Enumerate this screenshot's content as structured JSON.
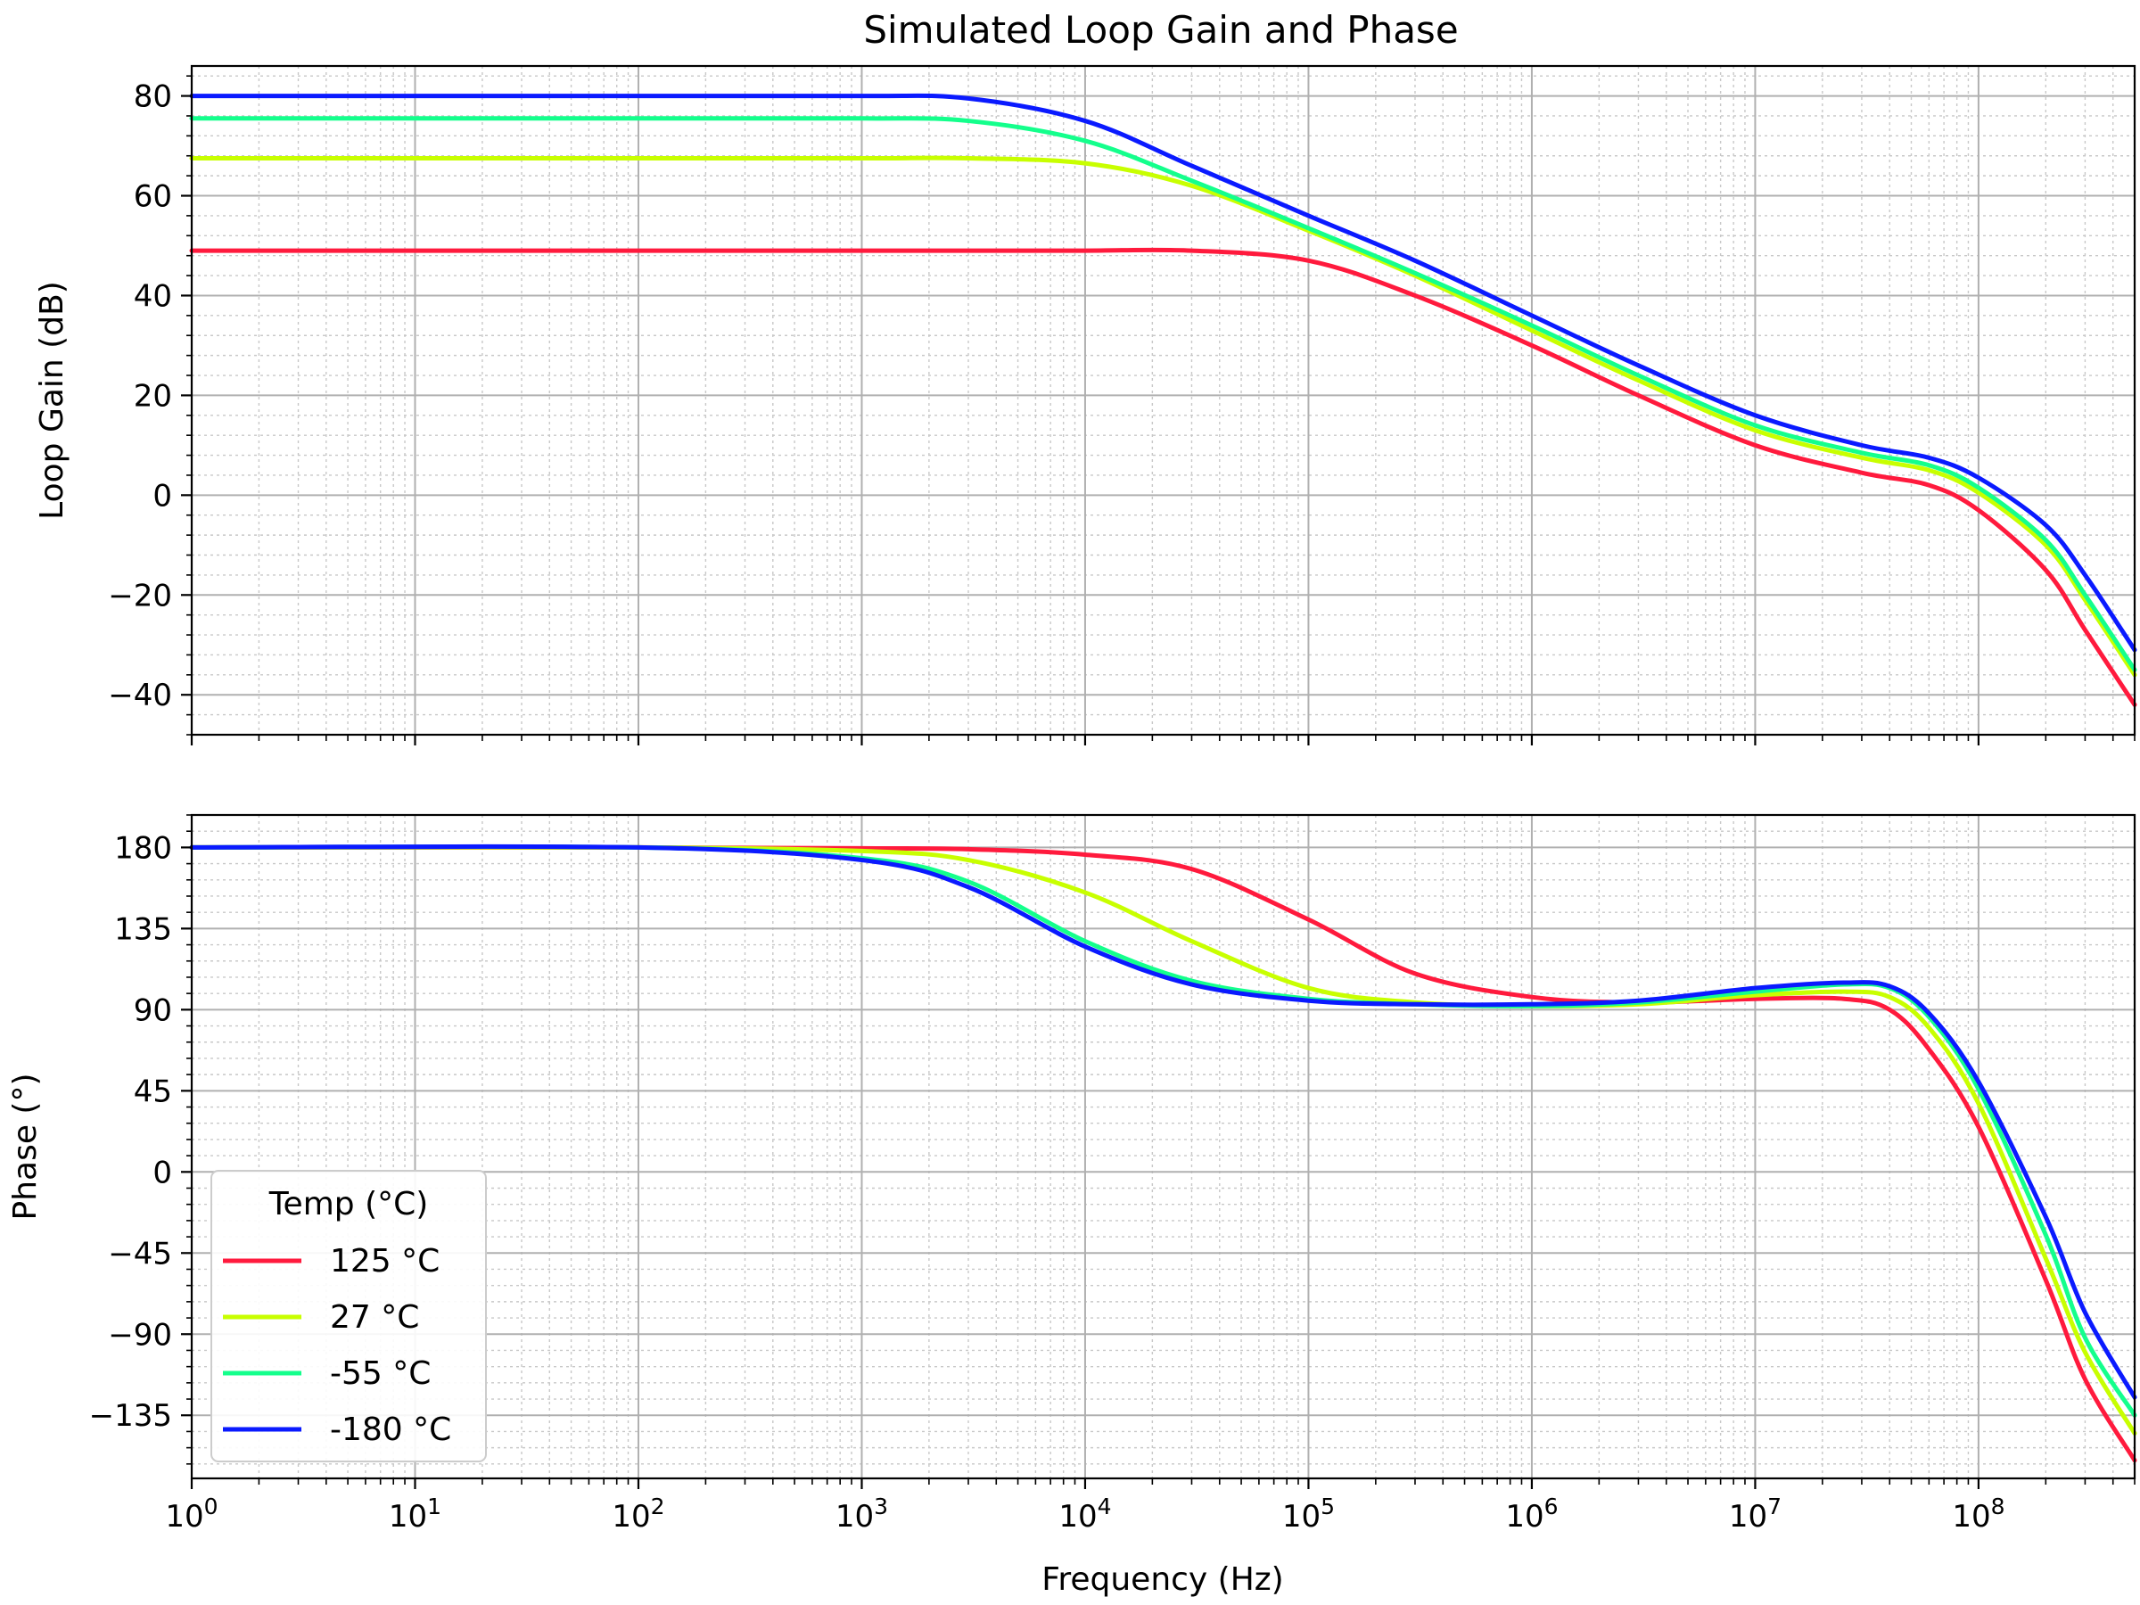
{
  "chart_data": {
    "title": "Simulated Loop Gain and Phase",
    "type": "line",
    "xlabel": "Frequency (Hz)",
    "x_scale": "log",
    "xlim": [
      1,
      500000000
    ],
    "x_ticks": [
      {
        "base": "10",
        "exp": "0"
      },
      {
        "base": "10",
        "exp": "1"
      },
      {
        "base": "10",
        "exp": "2"
      },
      {
        "base": "10",
        "exp": "3"
      },
      {
        "base": "10",
        "exp": "4"
      },
      {
        "base": "10",
        "exp": "5"
      },
      {
        "base": "10",
        "exp": "6"
      },
      {
        "base": "10",
        "exp": "7"
      },
      {
        "base": "10",
        "exp": "8"
      }
    ],
    "grid": true,
    "legend": {
      "title": "Temp (°C)",
      "placement": "lower-left",
      "entries": [
        "125 °C",
        "27 °C",
        "-55 °C",
        "-180 °C"
      ]
    },
    "series_colors": [
      "#ff1a3d",
      "#c8ff00",
      "#14ff8c",
      "#0a1aff"
    ],
    "panels": [
      {
        "name": "gain",
        "ylabel": "Loop Gain (dB)",
        "ylim": [
          -48,
          86
        ],
        "yticks": [
          -40,
          -20,
          0,
          20,
          40,
          60,
          80
        ],
        "ytick_labels": [
          "−40",
          "−20",
          "0",
          "20",
          "40",
          "60",
          "80"
        ],
        "x": [
          1,
          100,
          1000,
          3000,
          10000,
          30000,
          100000,
          300000,
          1000000,
          3000000,
          10000000,
          30000000,
          60000000,
          100000000,
          200000000,
          300000000,
          500000000
        ],
        "series": [
          {
            "name": "125 °C",
            "values": [
              49,
              49,
              49,
              49,
              49,
              49,
              47,
              40,
              30,
              20,
              10,
              4.5,
              2,
              -3,
              -15,
              -27,
              -42
            ]
          },
          {
            "name": "27 °C",
            "values": [
              67.5,
              67.5,
              67.5,
              67.5,
              66.5,
              62,
              53,
              44,
              33,
              23,
              13,
              7.5,
              5,
              0.5,
              -10,
              -21,
              -36
            ]
          },
          {
            "name": "-55 °C",
            "values": [
              75.5,
              75.5,
              75.5,
              75,
              71,
              63,
              53.5,
              44.5,
              34,
              24,
              14,
              8.5,
              6,
              1.5,
              -9,
              -20,
              -35
            ]
          },
          {
            "name": "-180 °C",
            "values": [
              80,
              80,
              80,
              79.5,
              75,
              66,
              56,
              47,
              36,
              26,
              16,
              10,
              7.5,
              3.5,
              -6,
              -16,
              -31
            ]
          }
        ]
      },
      {
        "name": "phase",
        "ylabel": "Phase (°)",
        "ylim": [
          -170,
          198
        ],
        "yticks": [
          -135,
          -90,
          -45,
          0,
          45,
          90,
          135,
          180
        ],
        "ytick_labels": [
          "−135",
          "−90",
          "−45",
          "0",
          "45",
          "90",
          "135",
          "180"
        ],
        "x": [
          1,
          100,
          1000,
          3000,
          10000,
          30000,
          100000,
          300000,
          1000000,
          3000000,
          10000000,
          25000000,
          40000000,
          60000000,
          100000000,
          200000000,
          300000000,
          500000000
        ],
        "series": [
          {
            "name": "125 °C",
            "values": [
              180,
              180,
              179.5,
              179,
              176,
              168,
              140,
              110,
              97,
              94,
              96,
              96,
              90,
              68,
              25,
              -60,
              -115,
              -160
            ]
          },
          {
            "name": "27 °C",
            "values": [
              180,
              180,
              178,
              173,
              155,
              128,
              102,
              94,
              92,
              93,
              98,
              100,
              97,
              80,
              38,
              -48,
              -100,
              -145
            ]
          },
          {
            "name": "-55 °C",
            "values": [
              180,
              180,
              174,
              161,
              128,
              106,
              96,
              93,
              92,
              94,
              100,
              104,
              102,
              86,
              46,
              -35,
              -92,
              -135
            ]
          },
          {
            "name": "-180 °C",
            "values": [
              180,
              180,
              173,
              158,
              125,
              104,
              95,
              93,
              93,
              95,
              102,
              105,
              103,
              88,
              50,
              -25,
              -78,
              -125
            ]
          }
        ]
      }
    ]
  }
}
